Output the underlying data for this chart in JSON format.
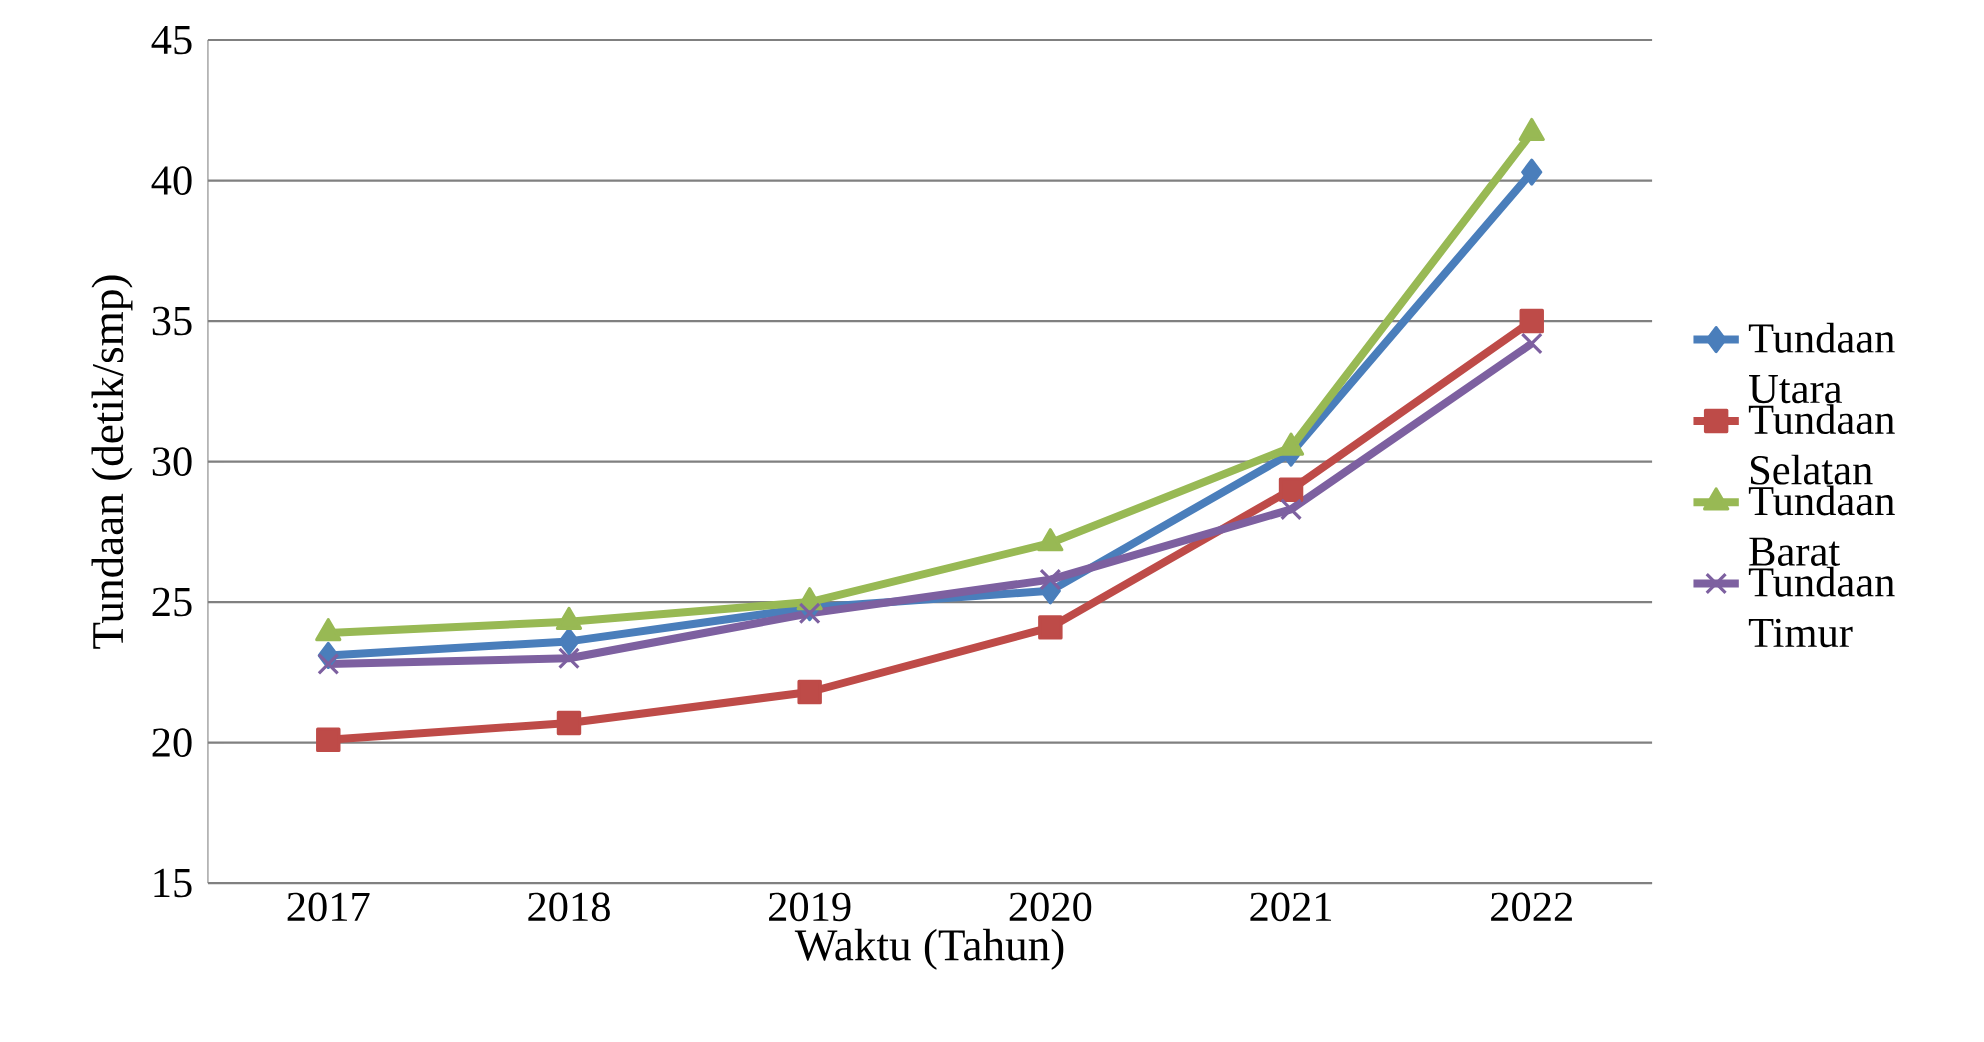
{
  "chart_data": {
    "type": "line",
    "categories": [
      "2017",
      "2018",
      "2019",
      "2020",
      "2021",
      "2022"
    ],
    "xlabel": "Waktu (Tahun)",
    "ylabel": "Tundaan (detik/smp)",
    "ylim": [
      15,
      45
    ],
    "yticks": [
      15,
      20,
      25,
      30,
      35,
      40,
      45
    ],
    "grid": "y",
    "legend": "right",
    "series": [
      {
        "name": "Tundaan Utara",
        "color": "#4a7ebb",
        "marker": "diamond",
        "values": [
          23.1,
          23.6,
          24.8,
          25.4,
          30.3,
          40.3
        ]
      },
      {
        "name": "Tundaan Selatan",
        "color": "#be4b48",
        "marker": "square",
        "values": [
          20.1,
          20.7,
          21.8,
          24.1,
          29.0,
          35.0
        ]
      },
      {
        "name": "Tundaan Barat",
        "color": "#98b954",
        "marker": "triangle",
        "values": [
          23.9,
          24.3,
          25.0,
          27.1,
          30.5,
          41.7
        ]
      },
      {
        "name": "Tundaan Timur",
        "color": "#7d60a0",
        "marker": "cross",
        "values": [
          22.8,
          23.0,
          24.6,
          25.8,
          28.3,
          34.2
        ]
      }
    ]
  }
}
